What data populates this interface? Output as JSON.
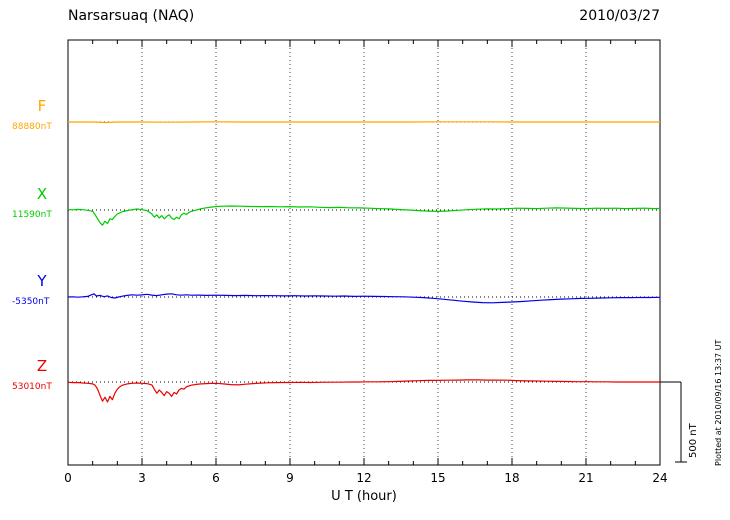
{
  "header": {
    "title": "Narsarsuaq (NAQ)",
    "date": "2010/03/27"
  },
  "footer": {
    "plotted_at": "Plotted at 2010/09/16 13:37 UT"
  },
  "chart_data": {
    "type": "line",
    "title": "Narsarsuaq (NAQ)",
    "date": "2010/03/27",
    "xlabel": "U T (hour)",
    "xlim": [
      0,
      24
    ],
    "x_ticks": [
      0,
      3,
      6,
      9,
      12,
      15,
      18,
      21,
      24
    ],
    "grid": "vertical dotted lines every 3 hours; dotted horizontal baseline per trace",
    "legend_position": "left margin, one colored label per trace",
    "scale_bar": {
      "label": "500 nT",
      "nT": 500
    },
    "plotted_at": "Plotted at 2010/09/16 13:37 UT",
    "y_unit": "nT offset from baseline value",
    "series": [
      {
        "name": "F",
        "base_label": "88880nT",
        "baseline_value_nT": 88880,
        "color": "#FFA500",
        "points": [
          [
            0,
            0
          ],
          [
            1,
            0
          ],
          [
            1.5,
            -3
          ],
          [
            2,
            0
          ],
          [
            3,
            0
          ],
          [
            4,
            -1
          ],
          [
            5,
            0
          ],
          [
            6,
            1
          ],
          [
            7,
            0
          ],
          [
            8,
            0
          ],
          [
            9,
            0
          ],
          [
            10,
            0
          ],
          [
            11,
            0
          ],
          [
            12,
            0
          ],
          [
            13,
            0
          ],
          [
            14,
            0
          ],
          [
            15,
            1
          ],
          [
            16,
            1
          ],
          [
            17,
            1
          ],
          [
            18,
            0
          ],
          [
            19,
            0
          ],
          [
            20,
            0
          ],
          [
            21,
            0
          ],
          [
            22,
            0
          ],
          [
            23,
            0
          ],
          [
            24,
            0
          ]
        ]
      },
      {
        "name": "X",
        "base_label": "11590nT",
        "baseline_value_nT": 11590,
        "color": "#00CC00",
        "points": [
          [
            0,
            3
          ],
          [
            0.2,
            1
          ],
          [
            0.4,
            4
          ],
          [
            0.6,
            2
          ],
          [
            0.8,
            -2
          ],
          [
            1.0,
            -8
          ],
          [
            1.1,
            -30
          ],
          [
            1.2,
            -55
          ],
          [
            1.3,
            -80
          ],
          [
            1.4,
            -95
          ],
          [
            1.5,
            -70
          ],
          [
            1.6,
            -85
          ],
          [
            1.7,
            -55
          ],
          [
            1.8,
            -60
          ],
          [
            1.9,
            -40
          ],
          [
            2.0,
            -25
          ],
          [
            2.1,
            -18
          ],
          [
            2.2,
            -10
          ],
          [
            2.4,
            -4
          ],
          [
            2.6,
            2
          ],
          [
            2.8,
            6
          ],
          [
            3.0,
            2
          ],
          [
            3.2,
            -4
          ],
          [
            3.4,
            -25
          ],
          [
            3.5,
            -45
          ],
          [
            3.6,
            -30
          ],
          [
            3.7,
            -50
          ],
          [
            3.8,
            -35
          ],
          [
            3.9,
            -55
          ],
          [
            4.0,
            -40
          ],
          [
            4.1,
            -30
          ],
          [
            4.2,
            -50
          ],
          [
            4.3,
            -60
          ],
          [
            4.4,
            -45
          ],
          [
            4.5,
            -55
          ],
          [
            4.6,
            -30
          ],
          [
            4.7,
            -20
          ],
          [
            4.8,
            -28
          ],
          [
            4.9,
            -15
          ],
          [
            5.0,
            -8
          ],
          [
            5.2,
            0
          ],
          [
            5.4,
            8
          ],
          [
            5.6,
            14
          ],
          [
            5.8,
            18
          ],
          [
            6.0,
            22
          ],
          [
            6.3,
            24
          ],
          [
            6.6,
            25
          ],
          [
            7.0,
            24
          ],
          [
            7.4,
            22
          ],
          [
            7.8,
            21
          ],
          [
            8.2,
            22
          ],
          [
            8.6,
            20
          ],
          [
            9.0,
            21
          ],
          [
            9.4,
            19
          ],
          [
            9.8,
            20
          ],
          [
            10.2,
            17
          ],
          [
            10.6,
            15
          ],
          [
            11.0,
            16
          ],
          [
            11.4,
            14
          ],
          [
            11.8,
            13
          ],
          [
            12.2,
            11
          ],
          [
            12.6,
            9
          ],
          [
            13.0,
            7
          ],
          [
            13.4,
            3
          ],
          [
            13.8,
            0
          ],
          [
            14.2,
            -4
          ],
          [
            14.6,
            -7
          ],
          [
            15.0,
            -9
          ],
          [
            15.4,
            -6
          ],
          [
            15.8,
            -2
          ],
          [
            16.2,
            2
          ],
          [
            16.6,
            5
          ],
          [
            17.0,
            7
          ],
          [
            17.4,
            6
          ],
          [
            17.8,
            9
          ],
          [
            18.2,
            11
          ],
          [
            18.6,
            10
          ],
          [
            19.0,
            9
          ],
          [
            19.4,
            11
          ],
          [
            19.8,
            13
          ],
          [
            20.2,
            12
          ],
          [
            20.6,
            10
          ],
          [
            21.0,
            9
          ],
          [
            21.4,
            11
          ],
          [
            21.8,
            10
          ],
          [
            22.2,
            11
          ],
          [
            22.6,
            9
          ],
          [
            23.0,
            10
          ],
          [
            23.4,
            11
          ],
          [
            23.8,
            9
          ],
          [
            24,
            10
          ]
        ]
      },
      {
        "name": "Y",
        "base_label": "-5350nT",
        "baseline_value_nT": -5350,
        "color": "#0000EE",
        "points": [
          [
            0,
            0
          ],
          [
            0.2,
            1
          ],
          [
            0.4,
            -1
          ],
          [
            0.6,
            1
          ],
          [
            0.8,
            4
          ],
          [
            0.95,
            14
          ],
          [
            1.05,
            20
          ],
          [
            1.15,
            6
          ],
          [
            1.3,
            10
          ],
          [
            1.45,
            2
          ],
          [
            1.6,
            7
          ],
          [
            1.75,
            -3
          ],
          [
            1.9,
            -6
          ],
          [
            2.05,
            0
          ],
          [
            2.2,
            5
          ],
          [
            2.4,
            10
          ],
          [
            2.6,
            14
          ],
          [
            2.8,
            11
          ],
          [
            3.0,
            13
          ],
          [
            3.2,
            17
          ],
          [
            3.4,
            12
          ],
          [
            3.6,
            9
          ],
          [
            3.8,
            14
          ],
          [
            4.0,
            18
          ],
          [
            4.2,
            20
          ],
          [
            4.4,
            14
          ],
          [
            4.6,
            11
          ],
          [
            4.8,
            14
          ],
          [
            5.0,
            11
          ],
          [
            5.3,
            12
          ],
          [
            5.6,
            10
          ],
          [
            6.0,
            11
          ],
          [
            6.4,
            10
          ],
          [
            6.8,
            9
          ],
          [
            7.2,
            10
          ],
          [
            7.6,
            8
          ],
          [
            8.0,
            9
          ],
          [
            8.4,
            8
          ],
          [
            8.8,
            7
          ],
          [
            9.2,
            8
          ],
          [
            9.6,
            6
          ],
          [
            10.0,
            7
          ],
          [
            10.4,
            6
          ],
          [
            10.8,
            5
          ],
          [
            11.2,
            6
          ],
          [
            11.6,
            4
          ],
          [
            12.0,
            5
          ],
          [
            12.4,
            4
          ],
          [
            12.8,
            3
          ],
          [
            13.2,
            2
          ],
          [
            13.6,
            1
          ],
          [
            14.0,
            -1
          ],
          [
            14.4,
            -4
          ],
          [
            14.8,
            -8
          ],
          [
            15.2,
            -14
          ],
          [
            15.6,
            -20
          ],
          [
            16.0,
            -26
          ],
          [
            16.4,
            -31
          ],
          [
            16.8,
            -35
          ],
          [
            17.2,
            -36
          ],
          [
            17.6,
            -34
          ],
          [
            18.0,
            -31
          ],
          [
            18.4,
            -28
          ],
          [
            18.8,
            -24
          ],
          [
            19.2,
            -20
          ],
          [
            19.6,
            -16
          ],
          [
            20.0,
            -13
          ],
          [
            20.4,
            -11
          ],
          [
            20.8,
            -9
          ],
          [
            21.2,
            -8
          ],
          [
            21.6,
            -6
          ],
          [
            22.0,
            -5
          ],
          [
            22.4,
            -4
          ],
          [
            22.8,
            -4
          ],
          [
            23.2,
            -3
          ],
          [
            23.6,
            -3
          ],
          [
            24,
            -2
          ]
        ]
      },
      {
        "name": "Z",
        "base_label": "53010nT",
        "baseline_value_nT": 53010,
        "color": "#EE0000",
        "points": [
          [
            0,
            -2
          ],
          [
            0.2,
            -4
          ],
          [
            0.4,
            -3
          ],
          [
            0.6,
            -6
          ],
          [
            0.8,
            -8
          ],
          [
            1.0,
            -12
          ],
          [
            1.1,
            -20
          ],
          [
            1.2,
            -45
          ],
          [
            1.3,
            -85
          ],
          [
            1.4,
            -120
          ],
          [
            1.5,
            -95
          ],
          [
            1.6,
            -125
          ],
          [
            1.7,
            -90
          ],
          [
            1.8,
            -110
          ],
          [
            1.9,
            -70
          ],
          [
            2.0,
            -45
          ],
          [
            2.1,
            -30
          ],
          [
            2.2,
            -20
          ],
          [
            2.4,
            -12
          ],
          [
            2.6,
            -8
          ],
          [
            2.8,
            -6
          ],
          [
            3.0,
            -8
          ],
          [
            3.2,
            -10
          ],
          [
            3.4,
            -18
          ],
          [
            3.5,
            -45
          ],
          [
            3.6,
            -70
          ],
          [
            3.7,
            -50
          ],
          [
            3.8,
            -65
          ],
          [
            3.9,
            -85
          ],
          [
            4.0,
            -60
          ],
          [
            4.1,
            -70
          ],
          [
            4.2,
            -90
          ],
          [
            4.3,
            -65
          ],
          [
            4.4,
            -75
          ],
          [
            4.5,
            -50
          ],
          [
            4.6,
            -40
          ],
          [
            4.7,
            -45
          ],
          [
            4.8,
            -30
          ],
          [
            4.9,
            -25
          ],
          [
            5.0,
            -20
          ],
          [
            5.2,
            -15
          ],
          [
            5.4,
            -12
          ],
          [
            5.6,
            -10
          ],
          [
            5.8,
            -9
          ],
          [
            6.0,
            -8
          ],
          [
            6.3,
            -12
          ],
          [
            6.6,
            -16
          ],
          [
            6.9,
            -18
          ],
          [
            7.2,
            -14
          ],
          [
            7.5,
            -10
          ],
          [
            7.8,
            -7
          ],
          [
            8.1,
            -5
          ],
          [
            8.4,
            -4
          ],
          [
            8.7,
            -3
          ],
          [
            9.0,
            -3
          ],
          [
            9.4,
            -2
          ],
          [
            9.8,
            -3
          ],
          [
            10.2,
            -2
          ],
          [
            10.6,
            -1
          ],
          [
            11.0,
            -1
          ],
          [
            11.4,
            0
          ],
          [
            11.8,
            0
          ],
          [
            12.2,
            1
          ],
          [
            12.6,
            1
          ],
          [
            13.0,
            2
          ],
          [
            13.4,
            4
          ],
          [
            13.8,
            6
          ],
          [
            14.2,
            8
          ],
          [
            14.6,
            10
          ],
          [
            15.0,
            10
          ],
          [
            15.4,
            11
          ],
          [
            15.8,
            12
          ],
          [
            16.2,
            13
          ],
          [
            16.6,
            13
          ],
          [
            17.0,
            12
          ],
          [
            17.4,
            12
          ],
          [
            17.8,
            11
          ],
          [
            18.2,
            9
          ],
          [
            18.6,
            7
          ],
          [
            19.0,
            6
          ],
          [
            19.4,
            5
          ],
          [
            19.8,
            4
          ],
          [
            20.2,
            3
          ],
          [
            20.6,
            2
          ],
          [
            21.0,
            2
          ],
          [
            21.4,
            1
          ],
          [
            21.8,
            1
          ],
          [
            22.2,
            0
          ],
          [
            22.6,
            0
          ],
          [
            23.0,
            0
          ],
          [
            23.4,
            0
          ],
          [
            23.8,
            0
          ],
          [
            24,
            0
          ]
        ]
      }
    ]
  }
}
